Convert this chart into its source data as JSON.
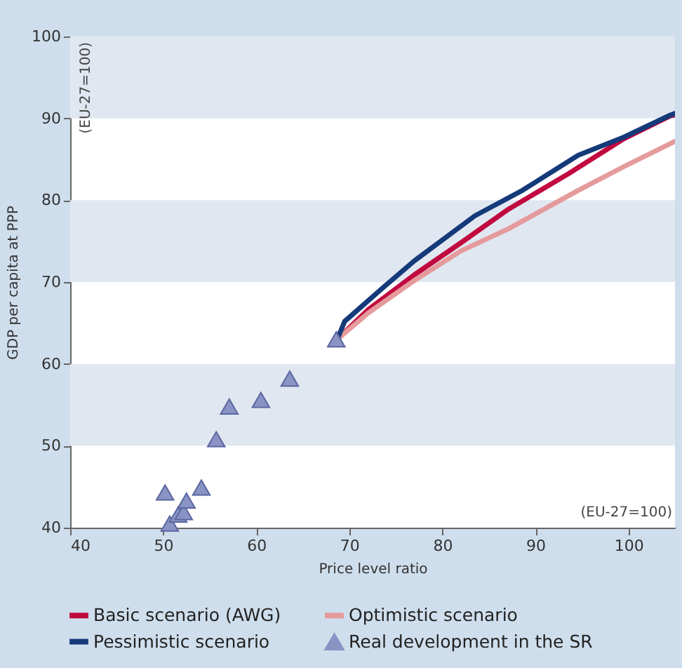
{
  "chart_data": {
    "type": "line",
    "xlabel": "Price level ratio",
    "ylabel": "GDP per capita at PPP",
    "annotations": [
      "(EU-27=100)",
      "(EU-27=100)"
    ],
    "xlim": [
      40,
      105
    ],
    "xticks": [
      40,
      50,
      60,
      70,
      80,
      90,
      100
    ],
    "ylim": [
      40,
      100
    ],
    "yticks": [
      40,
      50,
      60,
      70,
      80,
      90,
      100
    ],
    "bands": [
      {
        "axis": "y",
        "from": 50,
        "to": 60,
        "color": "#e1e7f1"
      },
      {
        "axis": "y",
        "from": 70,
        "to": 80,
        "color": "#e1e7f1"
      },
      {
        "axis": "y",
        "from": 90,
        "to": 100,
        "color": "#e1e7f1"
      }
    ],
    "legend": "bottom",
    "series": [
      {
        "name": "Basic scenario (AWG)",
        "color": "#c0093f",
        "x": [
          68.7,
          72,
          77,
          82,
          87.1,
          93.5,
          99.5,
          104.5,
          105
        ],
        "values": [
          63,
          66.6,
          70.9,
          74.8,
          78.9,
          83.2,
          87.5,
          90.3,
          90.4
        ]
      },
      {
        "name": "Optimistic scenario",
        "color": "#e59a9c",
        "x": [
          68.7,
          72,
          77,
          82,
          87.1,
          94.6,
          99.5,
          105
        ],
        "values": [
          63,
          66.2,
          70.2,
          73.8,
          76.5,
          81.2,
          84.1,
          87.2
        ]
      },
      {
        "name": "Pessimistic scenario",
        "color": "#143a7a",
        "x": [
          68.7,
          69.5,
          73.5,
          77,
          83.5,
          88.6,
          94.6,
          99.5,
          104.5,
          105
        ],
        "values": [
          63,
          65.2,
          69.2,
          72.6,
          78.1,
          81.2,
          85.5,
          87.7,
          90.4,
          90.6
        ]
      },
      {
        "name": "Real development in the SR",
        "type": "scatter",
        "marker": "triangle",
        "color": "#8a94c4",
        "x": [
          50.2,
          50.7,
          51.6,
          52.2,
          52.5,
          54.1,
          55.7,
          57.1,
          60.5,
          63.6,
          68.6
        ],
        "values": [
          44.3,
          40.5,
          41.6,
          41.9,
          43.3,
          44.9,
          50.8,
          54.8,
          55.6,
          58.2,
          63
        ]
      }
    ]
  }
}
